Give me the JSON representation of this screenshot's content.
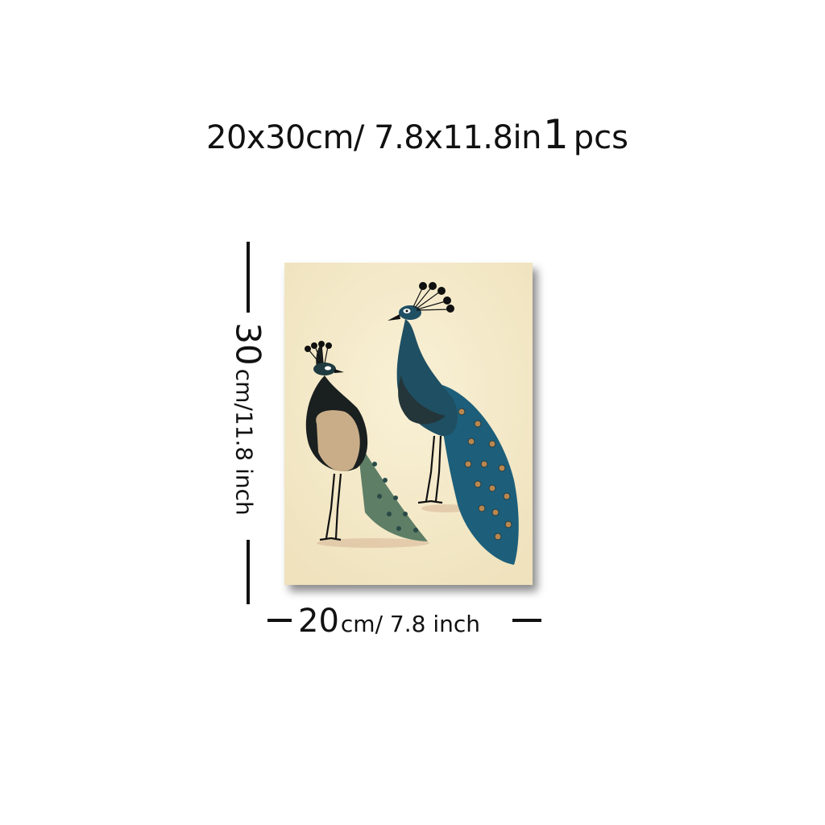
{
  "header": {
    "spec_text": "20x30cm/ 7.8x11.8in",
    "quantity_number": "1",
    "quantity_unit": "pcs"
  },
  "dimensions": {
    "height_value": "30",
    "height_unit_text": "cm/11.8 inch",
    "width_value": "20",
    "width_unit_text": "cm/ 7.8 inch"
  },
  "artwork": {
    "subject": "two peacocks",
    "colors": {
      "background": "#f6eccb",
      "teal_body": "#1f4f63",
      "blue_tail": "#1d5f7a",
      "green_tail": "#5e7e66",
      "wing_beige": "#c9ad88",
      "eye_spot": "#b8874f",
      "dark": "#111111"
    }
  }
}
